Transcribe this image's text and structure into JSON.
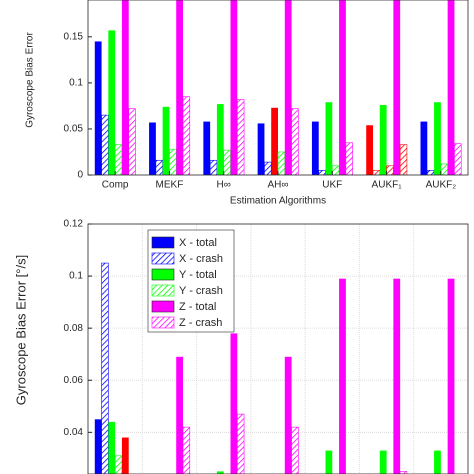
{
  "chart_data": [
    {
      "type": "bar",
      "ylabel": "Gyroscope Bias Error",
      "xlabel": "Estimation Algorithms",
      "categories": [
        "Comp",
        "MEKF",
        "H∞",
        "AH∞",
        "UKF",
        "AUKF₁",
        "AUKF₂"
      ],
      "ylim": [
        0,
        0.19
      ],
      "yticks": [
        0,
        0.05,
        0.1,
        0.15
      ],
      "grid": false,
      "series": [
        {
          "name": "X - total",
          "color": "#0000ff",
          "colors": [
            "#0000ff",
            "#0000ff",
            "#0000ff",
            "#0000ff",
            "#0000ff",
            "#ff0000",
            "#0000ff"
          ],
          "hatch": false,
          "values": [
            0.145,
            0.057,
            0.058,
            0.056,
            0.058,
            0.054,
            0.058
          ]
        },
        {
          "name": "X - crash",
          "color": "#0000ff",
          "colors": [
            "#0000ff",
            "#0000ff",
            "#0000ff",
            "#0000ff",
            "#0000ff",
            "#ff0000",
            "#0000ff"
          ],
          "hatch": true,
          "values": [
            0.065,
            0.016,
            0.016,
            0.014,
            0.005,
            0.005,
            0.005
          ]
        },
        {
          "name": "Y - total",
          "color": "#00ff00",
          "colors": [
            "#00ff00",
            "#00ff00",
            "#00ff00",
            "#ff0000",
            "#00ff00",
            "#00ff00",
            "#00ff00"
          ],
          "hatch": false,
          "values": [
            0.157,
            0.074,
            0.077,
            0.073,
            0.079,
            0.076,
            0.079
          ]
        },
        {
          "name": "Y - crash",
          "color": "#00ff00",
          "colors": [
            "#00ff00",
            "#00ff00",
            "#00ff00",
            "#00ff00",
            "#00ff00",
            "#ff0000",
            "#00ff00"
          ],
          "hatch": true,
          "values": [
            0.033,
            0.028,
            0.027,
            0.025,
            0.01,
            0.01,
            0.012
          ]
        },
        {
          "name": "Z - total",
          "color": "#ff00ff",
          "hatch": false,
          "values": [
            0.2,
            0.2,
            0.2,
            0.2,
            0.2,
            0.2,
            0.2
          ]
        },
        {
          "name": "Z - crash",
          "color": "#ff00ff",
          "colors": [
            "#ff00ff",
            "#ff00ff",
            "#ff00ff",
            "#ff00ff",
            "#ff00ff",
            "#ff0000",
            "#ff00ff"
          ],
          "hatch": true,
          "values": [
            0.072,
            0.085,
            0.082,
            0.072,
            0.035,
            0.033,
            0.034
          ]
        }
      ]
    },
    {
      "type": "bar",
      "ylabel": "Gyroscope Bias Error [°/s]",
      "legend": "upper left",
      "ylim": [
        0.024,
        0.12
      ],
      "yticks": [
        0.04,
        0.06,
        0.08,
        0.1,
        0.12
      ],
      "grid": true,
      "series": [
        {
          "name": "X - total",
          "color": "#0000ff",
          "hatch": false,
          "values": [
            0.045,
            null,
            null,
            null,
            null,
            null,
            null
          ]
        },
        {
          "name": "X - crash",
          "color": "#0000ff",
          "hatch": true,
          "values": [
            0.105,
            null,
            null,
            null,
            null,
            null,
            null
          ]
        },
        {
          "name": "Y - total",
          "color": "#00ff00",
          "hatch": false,
          "values": [
            0.044,
            null,
            0.025,
            null,
            0.033,
            0.033,
            0.033
          ]
        },
        {
          "name": "Y - crash",
          "color": "#00ff00",
          "hatch": true,
          "values": [
            0.031,
            null,
            null,
            null,
            null,
            null,
            null
          ]
        },
        {
          "name": "Z - total",
          "color": "#ff00ff",
          "colors": [
            "#ff0000",
            "#ff00ff",
            "#ff00ff",
            "#ff00ff",
            "#ff00ff",
            "#ff00ff",
            "#ff00ff"
          ],
          "hatch": false,
          "values": [
            0.038,
            0.069,
            0.078,
            0.069,
            0.099,
            0.099,
            0.099
          ]
        },
        {
          "name": "Z - crash",
          "color": "#ff00ff",
          "hatch": true,
          "values": [
            null,
            0.042,
            0.047,
            0.042,
            0.024,
            0.025,
            0.024
          ]
        }
      ]
    }
  ]
}
